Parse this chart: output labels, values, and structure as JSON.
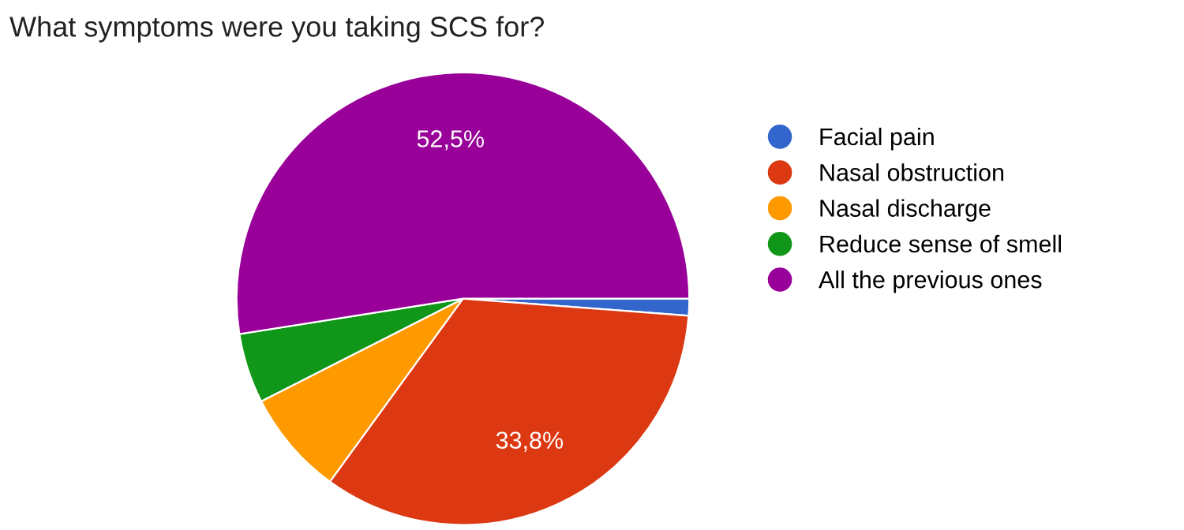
{
  "chart_data": {
    "type": "pie",
    "title": "What symptoms were you taking SCS for?",
    "categories": [
      "Facial pain",
      "Nasal obstruction",
      "Nasal discharge",
      "Reduce sense of smell",
      "All the previous ones"
    ],
    "values": [
      1.2,
      33.8,
      7.5,
      5.0,
      52.5
    ],
    "colors": [
      "#3366cc",
      "#dc3912",
      "#ff9900",
      "#109618",
      "#990099"
    ],
    "value_labels": [
      null,
      "33,8%",
      null,
      null,
      "52,5%"
    ],
    "legend": "right"
  }
}
